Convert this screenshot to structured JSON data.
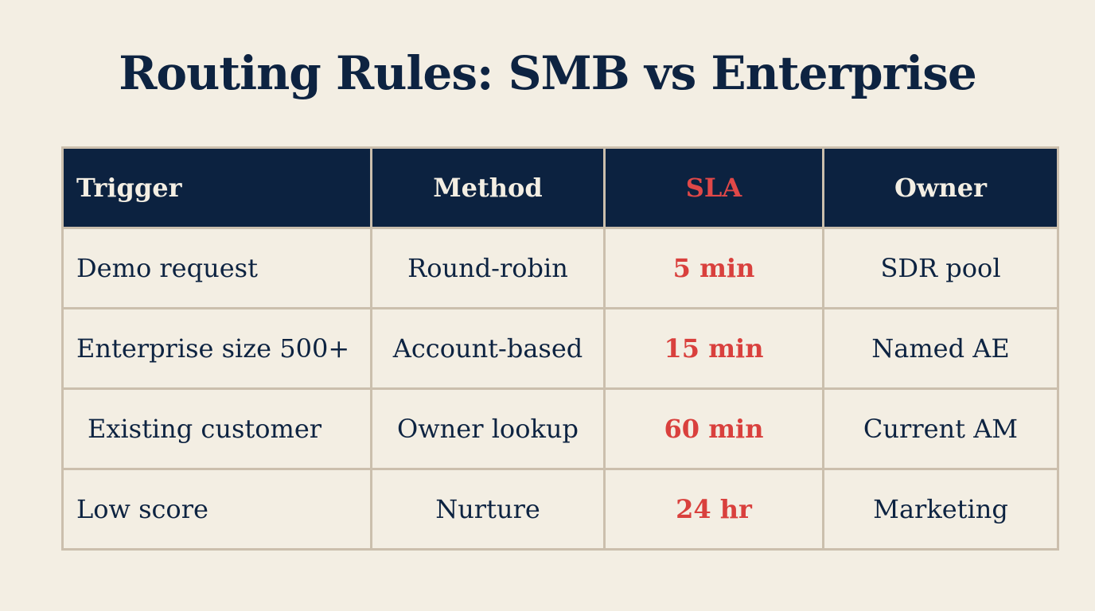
{
  "header": {
    "title": "Routing Rules: SMB vs Enterprise"
  },
  "table": {
    "columns": [
      "Trigger",
      "Method",
      "SLA",
      "Owner"
    ],
    "rows": [
      [
        "Demo request",
        "Round-robin",
        "5 min",
        "SDR pool"
      ],
      [
        "Enterprise size 500+",
        "Account-based",
        "15 min",
        "Named AE"
      ],
      [
        "Existing customer",
        "Owner lookup",
        "60 min",
        "Current AM"
      ],
      [
        "Low score",
        "Nurture",
        "24 hr",
        "Marketing"
      ]
    ]
  }
}
